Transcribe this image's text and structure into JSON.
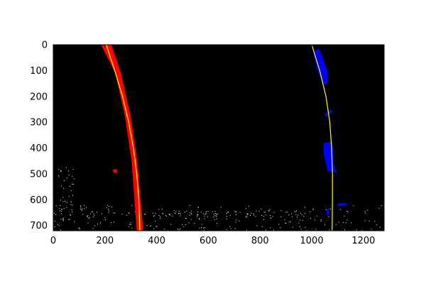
{
  "chart_data": {
    "type": "image",
    "title": "",
    "xlabel": "",
    "ylabel": "",
    "xlim": [
      0,
      1280
    ],
    "ylim": [
      720,
      0
    ],
    "x_ticks": [
      0,
      200,
      400,
      600,
      800,
      1000,
      1200
    ],
    "y_ticks": [
      0,
      100,
      200,
      300,
      400,
      500,
      600,
      700
    ],
    "background_color": "#000000",
    "grid": false,
    "legend": "none",
    "series": [
      {
        "kind": "pixels",
        "color": "#ff0000",
        "shape": "polygon",
        "points": [
          [
            185,
            0
          ],
          [
            225,
            0
          ],
          [
            262,
            110
          ],
          [
            300,
            280
          ],
          [
            325,
            450
          ],
          [
            348,
            720
          ],
          [
            323,
            720
          ],
          [
            303,
            450
          ],
          [
            278,
            280
          ],
          [
            240,
            110
          ]
        ]
      },
      {
        "kind": "pixels",
        "color": "#ff0000",
        "shape": "polygon",
        "points": [
          [
            230,
            485
          ],
          [
            246,
            480
          ],
          [
            247,
            497
          ],
          [
            233,
            495
          ]
        ]
      },
      {
        "kind": "pixels",
        "color": "#0000ff",
        "shape": "polygon",
        "points": [
          [
            1005,
            25
          ],
          [
            1030,
            15
          ],
          [
            1060,
            100
          ],
          [
            1063,
            150
          ],
          [
            1045,
            155
          ],
          [
            1022,
            100
          ]
        ]
      },
      {
        "kind": "pixels",
        "color": "#0000ff",
        "shape": "polygon",
        "points": [
          [
            1045,
            380
          ],
          [
            1080,
            375
          ],
          [
            1085,
            460
          ],
          [
            1095,
            495
          ],
          [
            1062,
            490
          ],
          [
            1048,
            430
          ]
        ]
      },
      {
        "kind": "pixels",
        "color": "#0000ff",
        "shape": "polygon",
        "points": [
          [
            1050,
            270
          ],
          [
            1075,
            250
          ],
          [
            1080,
            260
          ],
          [
            1056,
            278
          ]
        ]
      },
      {
        "kind": "pixels",
        "color": "#0000ff",
        "shape": "polygon",
        "points": [
          [
            1100,
            615
          ],
          [
            1135,
            612
          ],
          [
            1135,
            622
          ],
          [
            1100,
            625
          ]
        ]
      },
      {
        "kind": "pixels",
        "color": "#0000ff",
        "shape": "polygon",
        "points": [
          [
            1058,
            640
          ],
          [
            1066,
            630
          ],
          [
            1066,
            660
          ],
          [
            1058,
            658
          ]
        ]
      },
      {
        "kind": "fit-line",
        "color": "#ffff00",
        "x": [
          205,
          238,
          268,
          292,
          310,
          323,
          331,
          335
        ],
        "y": [
          0,
          100,
          200,
          300,
          400,
          500,
          600,
          720
        ]
      },
      {
        "kind": "fit-line",
        "color": "#ffff00",
        "x": [
          1000,
          1031,
          1055,
          1070,
          1077,
          1080,
          1080,
          1079
        ],
        "y": [
          0,
          100,
          200,
          300,
          400,
          500,
          600,
          720
        ]
      }
    ]
  }
}
